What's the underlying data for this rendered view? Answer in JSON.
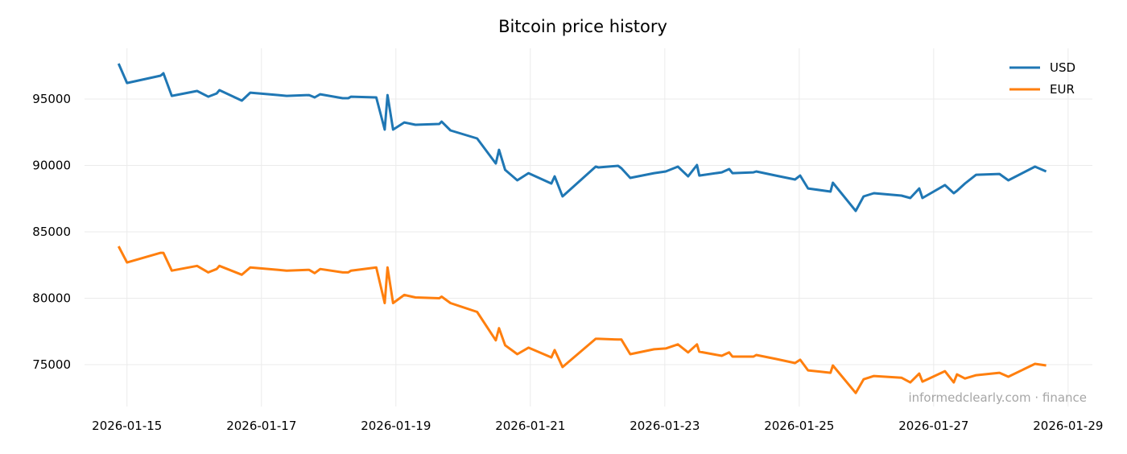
{
  "chart_data": {
    "type": "line",
    "title": "Bitcoin price history",
    "xlabel": "",
    "ylabel": "",
    "xlim": [
      "2026-01-14T08:50",
      "2026-01-29T08:40"
    ],
    "ylim": [
      71850,
      98820
    ],
    "x_ticks": [
      "2026-01-15",
      "2026-01-17",
      "2026-01-19",
      "2026-01-21",
      "2026-01-23",
      "2026-01-25",
      "2026-01-27",
      "2026-01-29"
    ],
    "y_ticks": [
      75000,
      80000,
      85000,
      90000,
      95000
    ],
    "grid": true,
    "legend_position": "top-right",
    "x": [
      "2026-01-14T21:00",
      "2026-01-15T00:00",
      "2026-01-15T12:00",
      "2026-01-15T13:00",
      "2026-01-15T16:00",
      "2026-01-16T01:00",
      "2026-01-16T05:00",
      "2026-01-16T08:00",
      "2026-01-16T09:00",
      "2026-01-16T17:00",
      "2026-01-16T20:00",
      "2026-01-17T06:00",
      "2026-01-17T09:00",
      "2026-01-17T17:00",
      "2026-01-17T19:00",
      "2026-01-17T21:00",
      "2026-01-18T05:00",
      "2026-01-18T07:00",
      "2026-01-18T08:00",
      "2026-01-18T17:00",
      "2026-01-18T20:00",
      "2026-01-18T21:00",
      "2026-01-18T23:00",
      "2026-01-19T03:00",
      "2026-01-19T07:00",
      "2026-01-19T15:30",
      "2026-01-19T16:20",
      "2026-01-19T19:30",
      "2026-01-20T05:00",
      "2026-01-20T11:40",
      "2026-01-20T12:50",
      "2026-01-20T15:00",
      "2026-01-20T19:20",
      "2026-01-20T23:20",
      "2026-01-21T07:30",
      "2026-01-21T08:40",
      "2026-01-21T11:30",
      "2026-01-21T23:20",
      "2026-01-22T00:20",
      "2026-01-22T07:20",
      "2026-01-22T08:30",
      "2026-01-22T11:40",
      "2026-01-22T20:10",
      "2026-01-23T00:20",
      "2026-01-23T04:40",
      "2026-01-23T08:20",
      "2026-01-23T11:30",
      "2026-01-23T12:20",
      "2026-01-23T20:20",
      "2026-01-23T23:00",
      "2026-01-24T00:10",
      "2026-01-24T07:40",
      "2026-01-24T08:40",
      "2026-01-24T15:40",
      "2026-01-24T22:30",
      "2026-01-25T00:20",
      "2026-01-25T03:10",
      "2026-01-25T11:10",
      "2026-01-25T12:00",
      "2026-01-25T20:10",
      "2026-01-25T23:00",
      "2026-01-26T02:40",
      "2026-01-26T12:30",
      "2026-01-26T15:40",
      "2026-01-26T18:50",
      "2026-01-26T20:00",
      "2026-01-27T04:00",
      "2026-01-27T07:10",
      "2026-01-27T08:20",
      "2026-01-27T11:10",
      "2026-01-27T15:10",
      "2026-01-27T23:30",
      "2026-01-28T02:40",
      "2026-01-28T12:10",
      "2026-01-28T16:10"
    ],
    "series": [
      {
        "name": "USD",
        "color": "#1f77b4",
        "values": [
          97670,
          96210,
          96760,
          96940,
          95240,
          95610,
          95180,
          95420,
          95670,
          94880,
          95480,
          95300,
          95240,
          95300,
          95120,
          95360,
          95060,
          95060,
          95180,
          95120,
          92700,
          95300,
          92700,
          93240,
          93060,
          93120,
          93300,
          92640,
          92030,
          90150,
          91180,
          89670,
          88880,
          89420,
          88640,
          89180,
          87670,
          89910,
          89850,
          89970,
          89790,
          89060,
          89420,
          89550,
          89910,
          89180,
          90030,
          89240,
          89480,
          89730,
          89420,
          89480,
          89550,
          89240,
          88940,
          89240,
          88270,
          88030,
          88700,
          86580,
          87670,
          87910,
          87730,
          87550,
          88270,
          87550,
          88520,
          87910,
          88090,
          88640,
          89300,
          89360,
          88880,
          89910,
          89550
        ]
      },
      {
        "name": "EUR",
        "color": "#ff7f0e",
        "values": [
          83910,
          82690,
          83420,
          83420,
          82080,
          82440,
          81950,
          82200,
          82440,
          81770,
          82320,
          82140,
          82080,
          82140,
          81890,
          82200,
          81950,
          81950,
          82080,
          82320,
          79640,
          82320,
          79640,
          80250,
          80060,
          80000,
          80120,
          79640,
          78970,
          76830,
          77750,
          76460,
          75790,
          76280,
          75550,
          76100,
          74820,
          76950,
          76950,
          76890,
          76890,
          75790,
          76160,
          76220,
          76530,
          75920,
          76530,
          75980,
          75670,
          75920,
          75610,
          75610,
          75730,
          75430,
          75120,
          75370,
          74570,
          74390,
          74940,
          72870,
          73900,
          74150,
          74020,
          73660,
          74330,
          73720,
          74510,
          73660,
          74270,
          73960,
          74210,
          74390,
          74090,
          75060,
          74940
        ]
      }
    ]
  },
  "watermark": "informedclearly.com · finance"
}
